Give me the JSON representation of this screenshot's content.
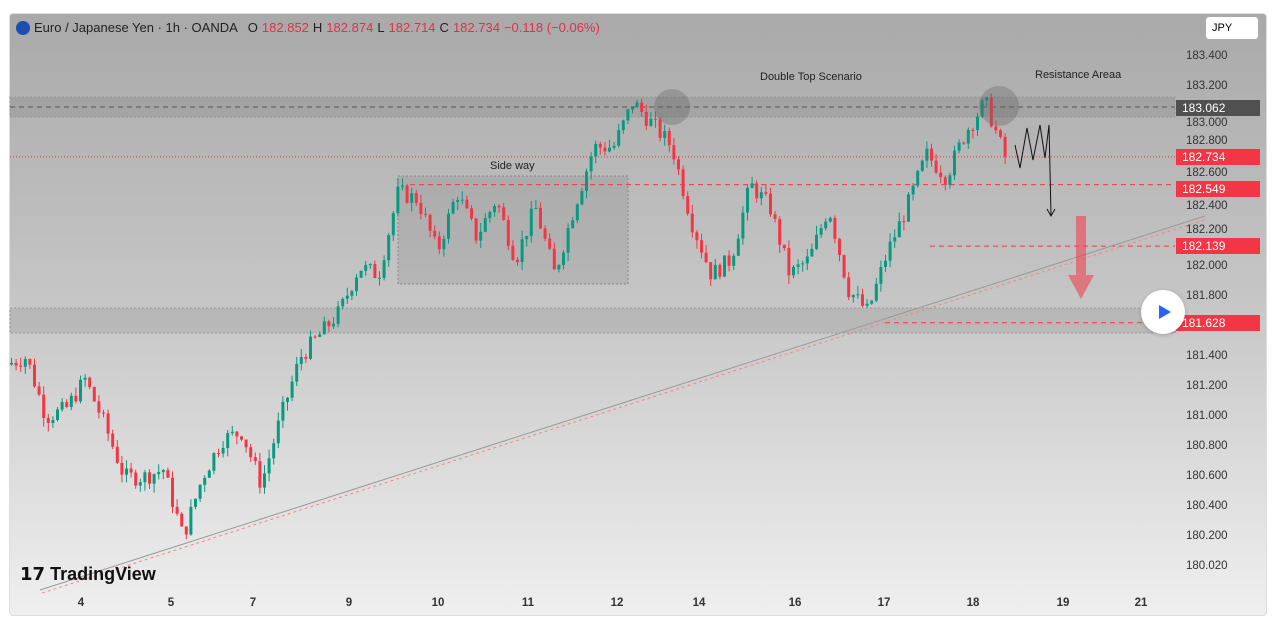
{
  "header": {
    "symbol": "Euro / Japanese Yen · 1h · OANDA",
    "o_label": "O",
    "o": "182.852",
    "h_label": "H",
    "h": "182.874",
    "l_label": "L",
    "l": "182.714",
    "c_label": "C",
    "c": "182.734",
    "change": "−0.118 (−0.06%)"
  },
  "currency": "JPY",
  "price_ticks": [
    "183.400",
    "183.200",
    "183.000",
    "182.800",
    "182.600",
    "182.400",
    "182.200",
    "182.000",
    "181.800",
    "181.400",
    "181.200",
    "181.000",
    "180.800",
    "180.600",
    "180.400",
    "180.200",
    "180.020"
  ],
  "price_tags": [
    {
      "label": "183.062",
      "color": "#505050"
    },
    {
      "label": "182.734",
      "color": "#f23645"
    },
    {
      "label": "182.549",
      "color": "#f23645"
    },
    {
      "label": "182.139",
      "color": "#f23645"
    },
    {
      "label": "181.628",
      "color": "#f23645"
    }
  ],
  "x_labels": [
    "4",
    "5",
    "7",
    "9",
    "10",
    "11",
    "12",
    "14",
    "16",
    "17",
    "18",
    "19",
    "21"
  ],
  "annotations": {
    "sideway": "Side way",
    "double_top": "Double Top Scenario",
    "resistance": "Resistance Areaa"
  },
  "logo": "TradingView",
  "colors": {
    "up": "#089981",
    "down": "#f23645"
  },
  "chart_data": {
    "type": "candlestick",
    "price_path": [
      181.35,
      181.4,
      181.0,
      181.05,
      181.25,
      180.95,
      180.6,
      180.6,
      180.65,
      180.2,
      180.6,
      180.85,
      180.9,
      180.55,
      181.0,
      181.4,
      181.55,
      181.7,
      182.0,
      181.95,
      182.5,
      182.45,
      182.1,
      182.5,
      182.2,
      182.45,
      182.05,
      182.4,
      181.95,
      182.4,
      182.8,
      182.8,
      183.1,
      182.95,
      182.8,
      182.3,
      181.95,
      182.05,
      182.55,
      182.4,
      181.95,
      182.05,
      182.4,
      181.85,
      181.7,
      182.1,
      182.4,
      182.75,
      182.6,
      182.9,
      183.1,
      182.734
    ]
  }
}
